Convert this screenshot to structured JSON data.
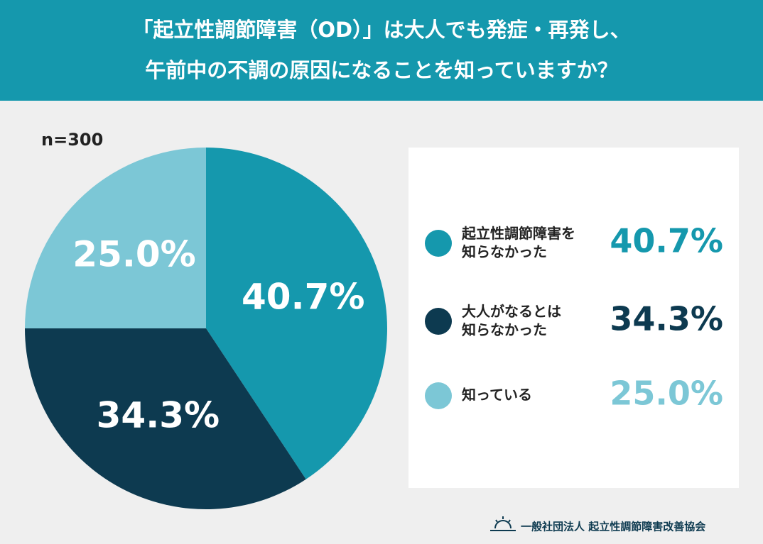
{
  "chart_data": {
    "type": "pie",
    "title": [
      "「起立性調節障害（OD）」は大人でも発症・再発し、",
      "午前中の不調の原因になることを知っていますか？"
    ],
    "note": "n=300",
    "categories": [
      "起立性調節障害を\n知らなかった",
      "大人がなるとは\n知らなかった",
      "知っている"
    ],
    "values": [
      40.7,
      34.3,
      25.0
    ],
    "value_labels": [
      "40.7%",
      "34.3%",
      "25.0%"
    ],
    "colors": [
      "#1598ad",
      "#0d3a50",
      "#7cc7d6"
    ],
    "source": "一般社団法人 起立性調節障害改善協会"
  }
}
